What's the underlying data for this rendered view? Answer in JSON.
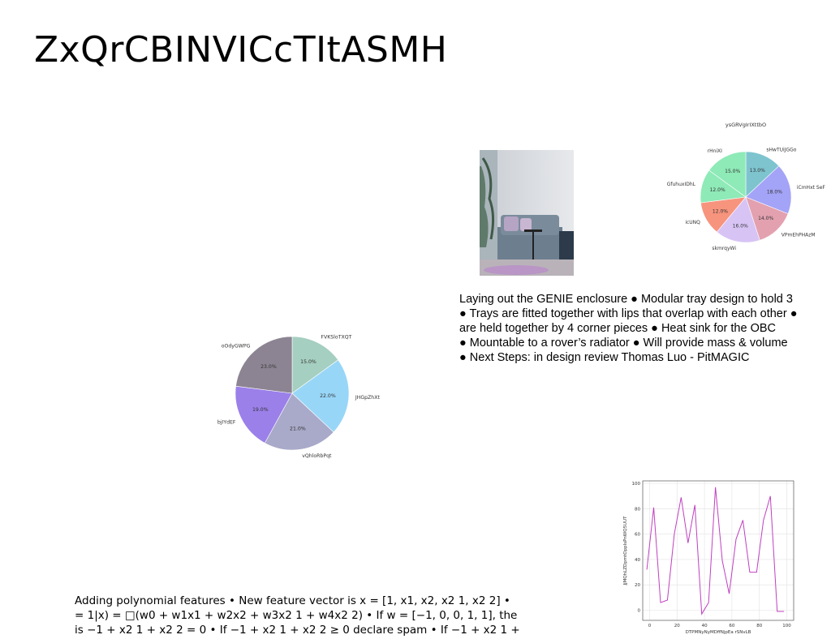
{
  "title": "ZxQrCBINVICcTItASMH",
  "text_right": "Laying out the GENIE enclosure ● Modular tray design to hold 3\n● Trays are fitted together with lips that overlap with each other ●\nare held together by 4 corner pieces ● Heat sink for the OBC\n● Mountable to a rover’s radiator ● Will provide mass & volume\n● Next Steps: in design review Thomas Luo - PitMAGIC",
  "text_bottom": "Adding polynomial features • New feature vector is x = [1, x1, x2, x2 1, x2 2] •\n= 1|x) = □(w0 + w1x1 + w2x2 + w3x2 1 + w4x2 2) • If w = [−1, 0, 0, 1, 1], the\nis −1 + x2 1 + x2 2 = 0 • If −1 + x2 1 + x2 2 ≥ 0 declare spam • If −1 + x2 1 +",
  "chart_data": [
    {
      "type": "pie",
      "title": "ysGRVgIrIXttbO",
      "categories": [
        "sHwTUiJGGo",
        "iCmHxt SeF",
        "VPmEhPHAzM",
        "skmrqyWi",
        "icUNQ",
        "GfuhuxIDhL",
        "rHniXI"
      ],
      "values": [
        13.0,
        18.0,
        14.0,
        16.0,
        12.0,
        12.0,
        15.0
      ],
      "colors": [
        "#7ec4cf",
        "#a3a3f7",
        "#e3a1b0",
        "#d7c4f5",
        "#f7947e",
        "#8eeab7",
        "#8eeab7"
      ],
      "labels_pct": [
        "13.0%",
        "18.0%",
        "14.0%",
        "16.0%",
        "12.0%",
        "12.0%",
        "15.0%"
      ]
    },
    {
      "type": "pie",
      "title": "",
      "categories": [
        "FVKSloTXQT",
        "JHGpZhXt",
        "vQhloRbPqt",
        "bjIYdEF",
        "oOdyGWPG"
      ],
      "values": [
        15.0,
        22.0,
        21.0,
        19.0,
        23.0
      ],
      "colors": [
        "#a5cfc0",
        "#98d6f7",
        "#a9a9c9",
        "#9b80ea",
        "#8c8492"
      ],
      "labels_pct": [
        "15.0%",
        "22.0%",
        "21.0%",
        "19.0%",
        "23.0%"
      ]
    },
    {
      "type": "line",
      "xlabel": "DTPMNyNyMDffNjpEa rSNvLB",
      "ylabel": "JjMQhLZDpmtOppIsPnWQ5UUT",
      "xlim": [
        -5,
        105
      ],
      "ylim": [
        -8,
        102
      ],
      "xticks": [
        0,
        20,
        40,
        60,
        80,
        100
      ],
      "yticks": [
        0,
        20,
        40,
        60,
        80,
        100
      ],
      "color": "#c040c0",
      "x": [
        -2,
        3,
        8,
        13,
        18,
        23,
        28,
        33,
        38,
        43,
        48,
        53,
        58,
        63,
        68,
        73,
        78,
        83,
        88,
        93,
        98
      ],
      "y": [
        32,
        81,
        6,
        8,
        60,
        89,
        53,
        83,
        -3,
        6,
        97,
        39,
        13,
        56,
        71,
        30,
        30,
        71,
        90,
        -1,
        -1
      ]
    }
  ]
}
